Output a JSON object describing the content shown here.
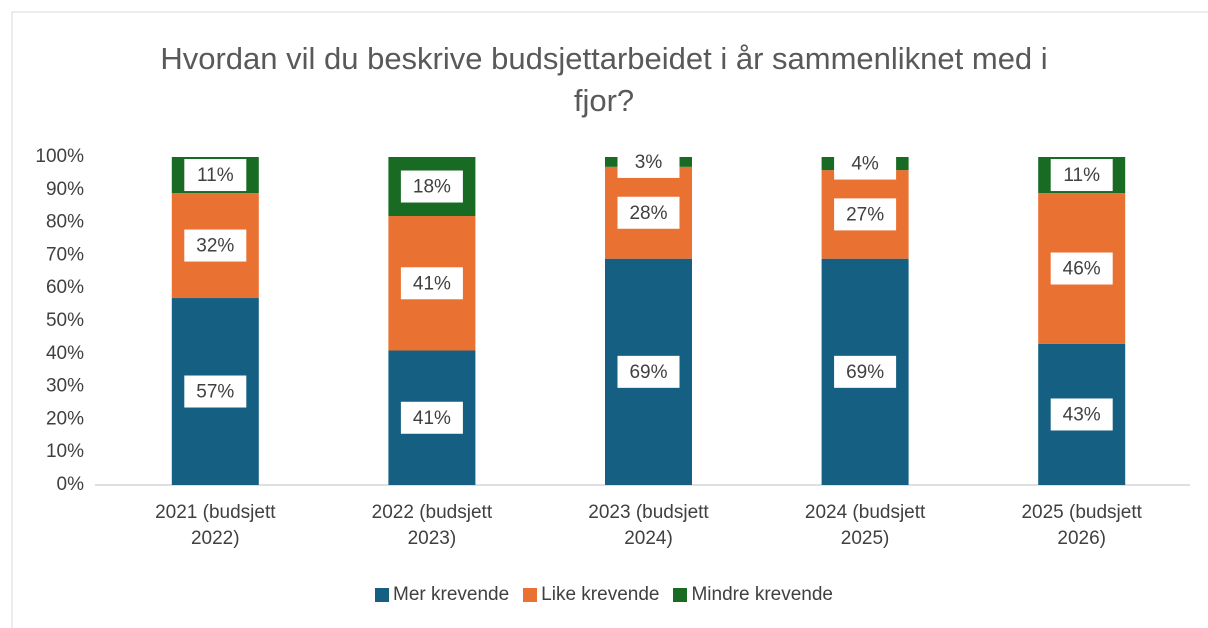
{
  "chart_data": {
    "type": "stacked_bar",
    "title": "Hvordan vil du beskrive budsjettarbeidet i år sammenliknet med i fjor?",
    "categories": [
      "2021 (budsjett 2022)",
      "2022 (budsjett 2023)",
      "2023 (budsjett 2024)",
      "2024 (budsjett 2025)",
      "2025 (budsjett 2026)"
    ],
    "series": [
      {
        "name": "Mer krevende",
        "color": "#156082",
        "values": [
          57,
          41,
          69,
          69,
          43
        ],
        "value_labels": [
          "57%",
          "41%",
          "69%",
          "69%",
          "43%"
        ]
      },
      {
        "name": "Like krevende",
        "color": "#e97132",
        "values": [
          32,
          41,
          28,
          27,
          46
        ],
        "value_labels": [
          "32%",
          "41%",
          "28%",
          "27%",
          "46%"
        ]
      },
      {
        "name": "Mindre krevende",
        "color": "#196b24",
        "values": [
          11,
          18,
          3,
          4,
          11
        ],
        "value_labels": [
          "11%",
          "18%",
          "3%",
          "4%",
          "11%"
        ]
      }
    ],
    "ylim": [
      0,
      100
    ],
    "yticks": [
      {
        "value": 0,
        "label": "0%"
      },
      {
        "value": 10,
        "label": "10%"
      },
      {
        "value": 20,
        "label": "20%"
      },
      {
        "value": 30,
        "label": "30%"
      },
      {
        "value": 40,
        "label": "40%"
      },
      {
        "value": 50,
        "label": "50%"
      },
      {
        "value": 60,
        "label": "60%"
      },
      {
        "value": 70,
        "label": "70%"
      },
      {
        "value": 80,
        "label": "80%"
      },
      {
        "value": 90,
        "label": "90%"
      },
      {
        "value": 100,
        "label": "100%"
      }
    ],
    "grid": false,
    "legend": "bottom"
  }
}
